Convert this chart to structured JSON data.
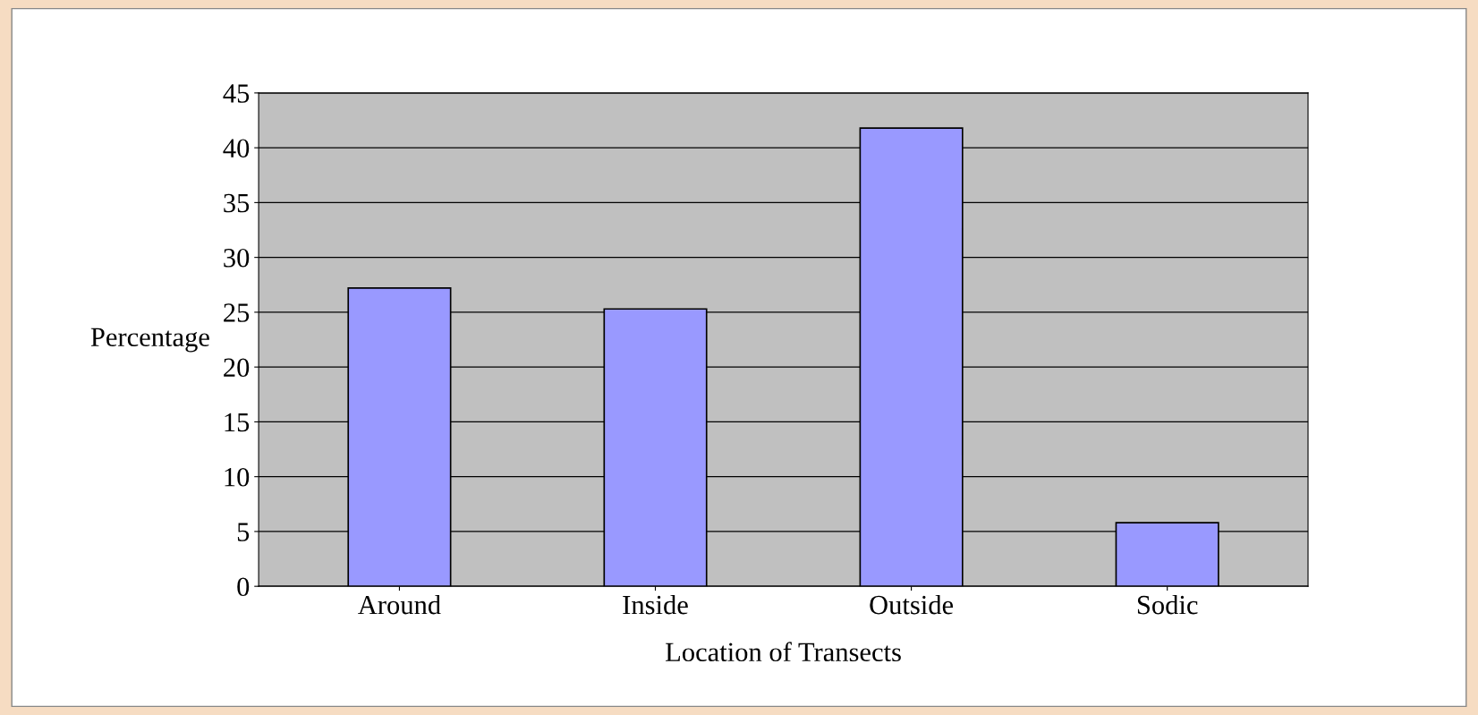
{
  "chart_data": {
    "type": "bar",
    "xlabel": "Location of Transects",
    "ylabel": "Percentage",
    "categories": [
      "Around",
      "Inside",
      "Outside",
      "Sodic"
    ],
    "values": [
      27.2,
      25.3,
      41.8,
      5.8
    ],
    "color": "#9999ff",
    "ylim": [
      0,
      45
    ],
    "yticks": [
      0,
      5,
      10,
      15,
      20,
      25,
      30,
      35,
      40,
      45
    ],
    "grid": "y",
    "legend": false
  }
}
